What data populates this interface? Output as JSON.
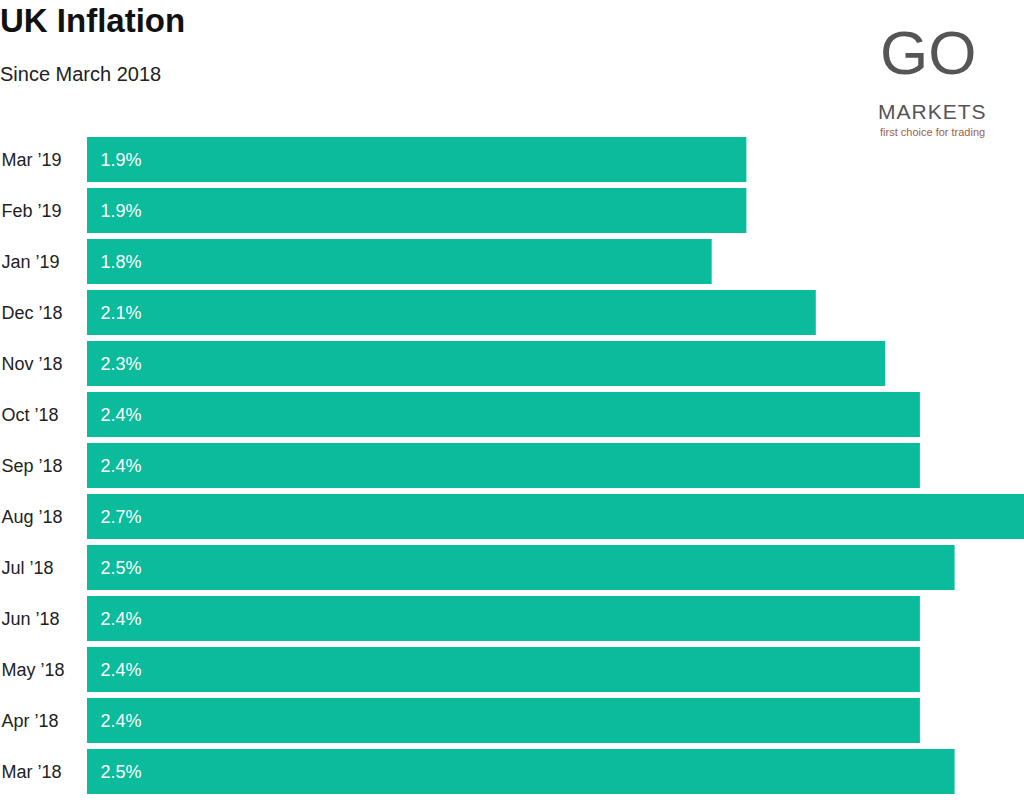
{
  "logo": {
    "name": "GO",
    "text": "MARKETS",
    "tagline": "first choice for trading"
  },
  "chart_data": {
    "type": "bar",
    "orientation": "horizontal",
    "title": "UK Inflation",
    "subtitle": "Since March 2018",
    "categories": [
      "Mar ’19",
      "Feb ’19",
      "Jan ’19",
      "Dec ’18",
      "Nov ’18",
      "Oct ’18",
      "Sep ’18",
      "Aug ’18",
      "Jul ’18",
      "Jun ’18",
      "May ’18",
      "Apr ’18",
      "Mar ’18"
    ],
    "values": [
      1.9,
      1.9,
      1.8,
      2.1,
      2.3,
      2.4,
      2.4,
      2.7,
      2.5,
      2.4,
      2.4,
      2.4,
      2.5
    ],
    "value_labels": [
      "1.9%",
      "1.9%",
      "1.8%",
      "2.1%",
      "2.3%",
      "2.4%",
      "2.4%",
      "2.7%",
      "2.5%",
      "2.4%",
      "2.4%",
      "2.4%",
      "2.5%"
    ],
    "color": "#0abb9c",
    "xlim": [
      0,
      2.7
    ],
    "data_labels": true,
    "tick_labels": "y",
    "grid": false
  }
}
